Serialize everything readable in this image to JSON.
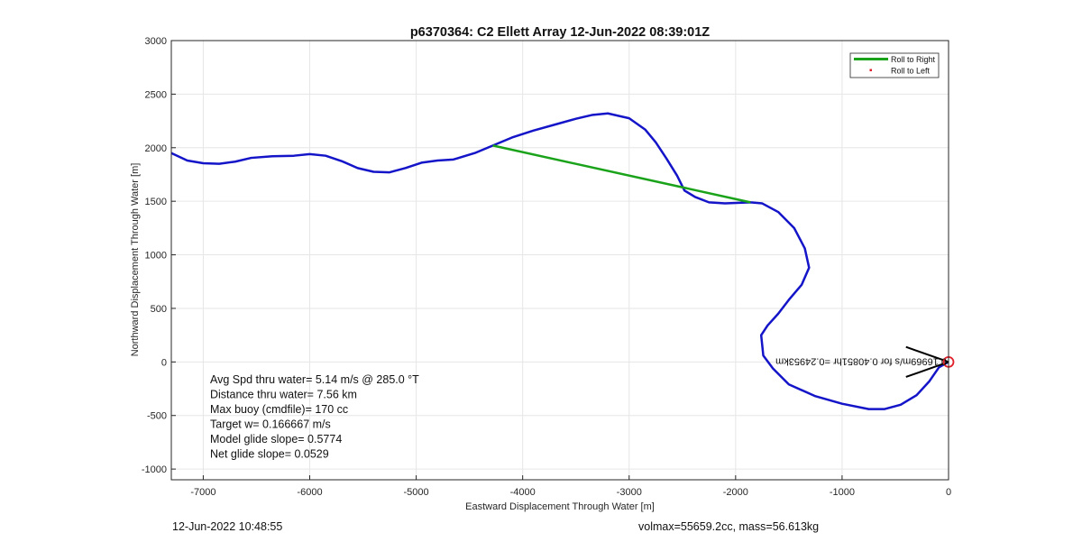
{
  "chart_data": {
    "type": "line",
    "title": "p6370364: C2 Ellett Array 12-Jun-2022 08:39:01Z",
    "xlabel": "Eastward Displacement Through Water [m]",
    "ylabel": "Northward Displacement Through Water [m]",
    "xlim": [
      -7300,
      0
    ],
    "ylim": [
      -1100,
      3000
    ],
    "xticks": [
      -7000,
      -6000,
      -5000,
      -4000,
      -3000,
      -2000,
      -1000,
      0
    ],
    "yticks": [
      -1000,
      -500,
      0,
      500,
      1000,
      1500,
      2000,
      2500,
      3000
    ],
    "grid": true,
    "legend_position": "top-right",
    "legend": [
      "Roll to Right",
      "Roll to Left"
    ],
    "series": [
      {
        "name": "Roll to Right",
        "color": "#1aa31a",
        "points": [
          [
            -4280,
            2020
          ],
          [
            -1860,
            1490
          ]
        ]
      },
      {
        "name": "Roll to Left",
        "color": "#e0202a",
        "points": []
      },
      {
        "name": "track",
        "color": "#1414c8",
        "points": [
          [
            -7300,
            1950
          ],
          [
            -7150,
            1880
          ],
          [
            -7000,
            1855
          ],
          [
            -6850,
            1850
          ],
          [
            -6700,
            1870
          ],
          [
            -6550,
            1905
          ],
          [
            -6350,
            1920
          ],
          [
            -6150,
            1925
          ],
          [
            -6000,
            1940
          ],
          [
            -5850,
            1925
          ],
          [
            -5700,
            1875
          ],
          [
            -5550,
            1810
          ],
          [
            -5400,
            1775
          ],
          [
            -5250,
            1770
          ],
          [
            -5100,
            1810
          ],
          [
            -4950,
            1860
          ],
          [
            -4800,
            1880
          ],
          [
            -4650,
            1890
          ],
          [
            -4450,
            1950
          ],
          [
            -4280,
            2020
          ],
          [
            -4100,
            2095
          ],
          [
            -3900,
            2160
          ],
          [
            -3700,
            2215
          ],
          [
            -3500,
            2270
          ],
          [
            -3350,
            2305
          ],
          [
            -3200,
            2320
          ],
          [
            -3000,
            2275
          ],
          [
            -2850,
            2170
          ],
          [
            -2750,
            2050
          ],
          [
            -2650,
            1900
          ],
          [
            -2550,
            1740
          ],
          [
            -2480,
            1600
          ],
          [
            -2380,
            1540
          ],
          [
            -2250,
            1490
          ],
          [
            -2100,
            1480
          ],
          [
            -1860,
            1490
          ],
          [
            -1750,
            1480
          ],
          [
            -1600,
            1400
          ],
          [
            -1450,
            1250
          ],
          [
            -1350,
            1060
          ],
          [
            -1310,
            880
          ],
          [
            -1380,
            720
          ],
          [
            -1500,
            580
          ],
          [
            -1600,
            450
          ],
          [
            -1700,
            340
          ],
          [
            -1760,
            250
          ],
          [
            -1740,
            60
          ],
          [
            -1650,
            -60
          ],
          [
            -1500,
            -210
          ],
          [
            -1250,
            -320
          ],
          [
            -1000,
            -390
          ],
          [
            -750,
            -440
          ],
          [
            -600,
            -440
          ],
          [
            -450,
            -400
          ],
          [
            -300,
            -310
          ],
          [
            -180,
            -180
          ],
          [
            -90,
            -50
          ],
          [
            0,
            0
          ]
        ]
      }
    ],
    "arrows": [
      [
        [
          0,
          0
        ],
        [
          -400,
          140
        ]
      ],
      [
        [
          0,
          0
        ],
        [
          -400,
          -140
        ]
      ]
    ],
    "end_marker": {
      "x": 0,
      "y": 0,
      "color": "#e0202a"
    },
    "point_annotation": {
      "x": 0,
      "y": 0,
      "text": "0.16969m/s for 0.40851hr =0.24953km"
    },
    "stats_text": [
      "Avg Spd thru water=  5.14 m/s @ 285.0 °T",
      "Distance thru water=  7.56 km",
      "Max buoy (cmdfile)= 170 cc",
      "Target w= 0.166667 m/s",
      "Model glide slope= 0.5774",
      "Net glide slope= 0.0529"
    ]
  },
  "footer": {
    "left": "12-Jun-2022 10:48:55",
    "right": "volmax=55659.2cc, mass=56.613kg"
  }
}
